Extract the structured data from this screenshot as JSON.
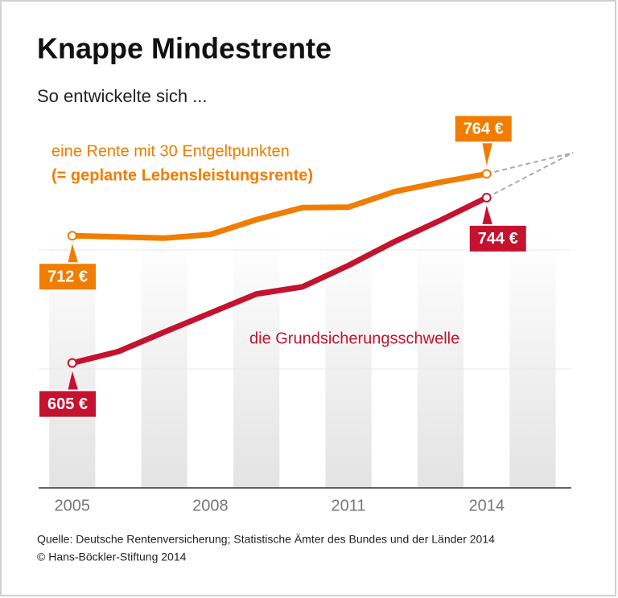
{
  "chart_data": {
    "type": "line",
    "title": "Knappe Mindestrente",
    "subtitle": "So entwickelte sich ...",
    "x": [
      2005,
      2006,
      2007,
      2008,
      2009,
      2010,
      2011,
      2012,
      2013,
      2014
    ],
    "xlim": [
      2004.27,
      2015.84
    ],
    "xticks": [
      2005,
      2008,
      2011,
      2014
    ],
    "ylim": [
      500,
      800
    ],
    "ygrid": [
      600,
      700
    ],
    "series": [
      {
        "name": "eine Rente mit 30 Entgeltpunkten",
        "note": "(= geplante Lebensleistungsrente)",
        "color": "#f07d00",
        "values": [
          712,
          711,
          710,
          713,
          725.5,
          735.6,
          736,
          749,
          757,
          764
        ],
        "value_labels": [
          "712 €",
          null,
          null,
          null,
          null,
          null,
          null,
          null,
          null,
          "764 €"
        ]
      },
      {
        "name": "die Grundsicherungsschwelle",
        "color": "#c4122f",
        "values": [
          605,
          614.6,
          631,
          647,
          663,
          669,
          687,
          707,
          725,
          744
        ],
        "value_labels": [
          "605 €",
          null,
          null,
          null,
          null,
          null,
          null,
          null,
          null,
          "744 €"
        ]
      }
    ],
    "source": "Quelle: Deutsche Rentenversicherung; Statistische Ämter des Bundes und der Länder 2014",
    "copyright": "© Hans-Böckler-Stiftung 2014"
  }
}
